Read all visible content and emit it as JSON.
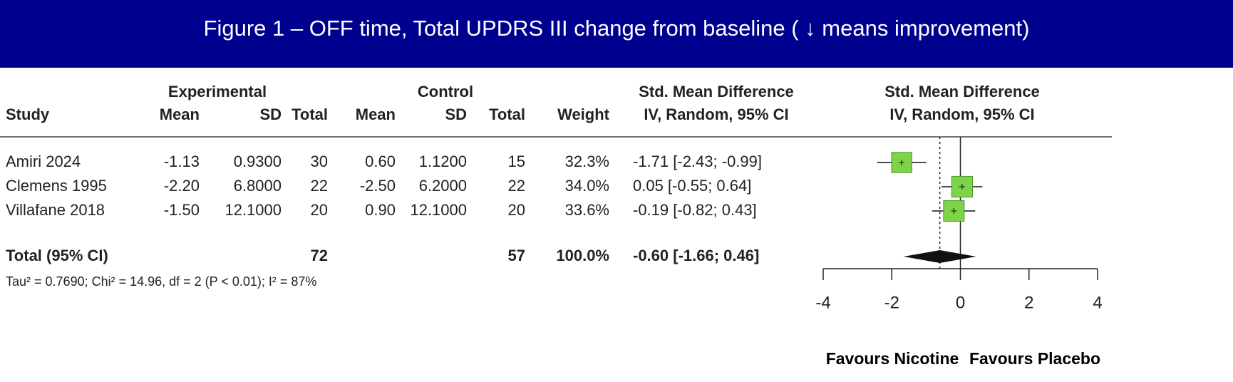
{
  "title": "Figure 1 – OFF time, Total UPDRS III change from baseline ( ↓ means improvement)",
  "chart_data": {
    "type": "forest",
    "group_headers": [
      "Experimental",
      "Control",
      "Std. Mean Difference"
    ],
    "columns": [
      "Study",
      "Mean",
      "SD",
      "Total",
      "Mean",
      "SD",
      "Total",
      "Weight",
      "IV, Random, 95% CI"
    ],
    "plot_header": [
      "Std. Mean Difference",
      "IV, Random, 95% CI"
    ],
    "studies": [
      {
        "cells": [
          "Amiri 2024",
          "-1.13",
          "0.9300",
          "30",
          "0.60",
          "1.1200",
          "15"
        ],
        "weight": 32.3,
        "weight_label": "32.3%",
        "smd": -1.71,
        "lower": -2.43,
        "upper": -0.99,
        "ci_label": "-1.71 [-2.43; -0.99]"
      },
      {
        "cells": [
          "Clemens 1995",
          "-2.20",
          "6.8000",
          "22",
          "-2.50",
          "6.2000",
          "22"
        ],
        "weight": 34.0,
        "weight_label": "34.0%",
        "smd": 0.05,
        "lower": -0.55,
        "upper": 0.64,
        "ci_label": "0.05 [-0.55;  0.64]"
      },
      {
        "cells": [
          "Villafane 2018",
          "-1.50",
          "12.1000",
          "20",
          "0.90",
          "12.1000",
          "20"
        ],
        "weight": 33.6,
        "weight_label": "33.6%",
        "smd": -0.19,
        "lower": -0.82,
        "upper": 0.43,
        "ci_label": "-0.19 [-0.82;  0.43]"
      }
    ],
    "total": {
      "label": "Total (95% CI)",
      "exp_total": "72",
      "ctl_total": "57",
      "weight_label": "100.0%",
      "smd": -0.6,
      "lower": -1.66,
      "upper": 0.46,
      "ci_label": "-0.60 [-1.66;  0.46]"
    },
    "heterogeneity": "Tau² = 0.7690; Chi² = 14.96, df = 2 (P < 0.01); I² = 87%",
    "xlim": [
      -4,
      4
    ],
    "xticks": [
      -4,
      -2,
      0,
      2,
      4
    ],
    "x_labels": [
      "Favours Nicotine",
      "Favours Placebo"
    ],
    "box_color": "#7ed348"
  }
}
